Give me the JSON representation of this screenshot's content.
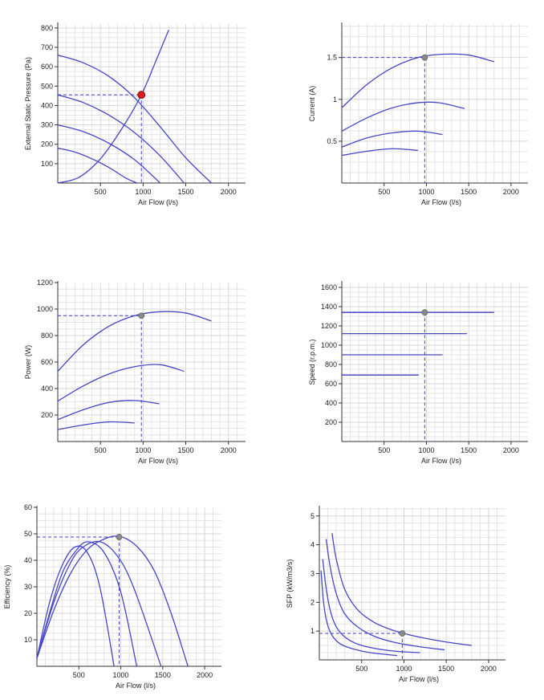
{
  "colors": {
    "curve": "#4646c8",
    "grid": "#e4e4e4",
    "axis": "#333333",
    "guide": "#3c3cd2",
    "marker_main": "#d71e1e",
    "marker": "#8a8a8a"
  },
  "chart_data": [
    {
      "id": "pressure",
      "type": "line",
      "title": "",
      "xlabel": "Air Flow (l/s)",
      "ylabel": "External Static Pressure (Pa)",
      "xlim": [
        0,
        2200
      ],
      "ylim": [
        0,
        820
      ],
      "xticks": [
        500,
        1000,
        1500,
        2000
      ],
      "yticks": [
        100,
        200,
        300,
        400,
        500,
        600,
        700,
        800
      ],
      "series": [
        {
          "x": [
            0,
            300,
            600,
            900,
            1200,
            1500,
            1800
          ],
          "y": [
            660,
            620,
            550,
            440,
            290,
            130,
            0
          ]
        },
        {
          "x": [
            0,
            300,
            600,
            900,
            1200,
            1480
          ],
          "y": [
            455,
            415,
            350,
            260,
            140,
            0
          ]
        },
        {
          "x": [
            0,
            300,
            600,
            900,
            1200
          ],
          "y": [
            300,
            265,
            205,
            120,
            0
          ]
        },
        {
          "x": [
            0,
            200,
            400,
            600,
            800,
            930
          ],
          "y": [
            180,
            160,
            125,
            80,
            25,
            0
          ]
        },
        {
          "x": [
            0,
            250,
            500,
            750,
            980,
            1150,
            1300
          ],
          "y": [
            0,
            30,
            125,
            280,
            455,
            630,
            790
          ]
        }
      ],
      "operating_point": {
        "x": 980,
        "y": 455
      }
    },
    {
      "id": "current",
      "type": "line",
      "title": "",
      "xlabel": "Air Flow (l/s)",
      "ylabel": "Current (A)",
      "xlim": [
        0,
        2200
      ],
      "ylim": [
        0,
        1.9
      ],
      "xticks": [
        500,
        1000,
        1500,
        2000
      ],
      "yticks": [
        0.5,
        1,
        1.5
      ],
      "ytick_labels": [
        "0.5",
        "1",
        "1.5"
      ],
      "series": [
        {
          "x": [
            0,
            300,
            600,
            900,
            1200,
            1500,
            1800
          ],
          "y": [
            0.9,
            1.18,
            1.38,
            1.5,
            1.54,
            1.53,
            1.45
          ]
        },
        {
          "x": [
            0,
            300,
            600,
            900,
            1150,
            1450
          ],
          "y": [
            0.62,
            0.78,
            0.9,
            0.96,
            0.96,
            0.89
          ]
        },
        {
          "x": [
            0,
            300,
            600,
            900,
            1190
          ],
          "y": [
            0.43,
            0.54,
            0.6,
            0.62,
            0.58
          ]
        },
        {
          "x": [
            0,
            300,
            600,
            900
          ],
          "y": [
            0.33,
            0.38,
            0.41,
            0.39
          ]
        }
      ],
      "operating_point": {
        "x": 980,
        "y": 1.5
      }
    },
    {
      "id": "power",
      "type": "line",
      "title": "",
      "xlabel": "Air Flow (l/s)",
      "ylabel": "Power (W)",
      "xlim": [
        0,
        2200
      ],
      "ylim": [
        0,
        1200
      ],
      "xticks": [
        500,
        1000,
        1500,
        2000
      ],
      "yticks": [
        200,
        400,
        600,
        800,
        1000,
        1200
      ],
      "series": [
        {
          "x": [
            0,
            300,
            600,
            900,
            1200,
            1500,
            1800
          ],
          "y": [
            530,
            730,
            870,
            950,
            980,
            970,
            910
          ]
        },
        {
          "x": [
            0,
            300,
            600,
            900,
            1200,
            1480
          ],
          "y": [
            305,
            420,
            510,
            565,
            580,
            530
          ]
        },
        {
          "x": [
            0,
            300,
            600,
            900,
            1190
          ],
          "y": [
            165,
            240,
            295,
            310,
            285
          ]
        },
        {
          "x": [
            0,
            300,
            600,
            900
          ],
          "y": [
            90,
            125,
            148,
            140
          ]
        }
      ],
      "operating_point": {
        "x": 980,
        "y": 950
      }
    },
    {
      "id": "speed",
      "type": "line",
      "title": "",
      "xlabel": "Air Flow (l/s)",
      "ylabel": "Speed (r.p.m.)",
      "xlim": [
        0,
        2200
      ],
      "ylim": [
        0,
        1650
      ],
      "xticks": [
        500,
        1000,
        1500,
        2000
      ],
      "yticks": [
        200,
        400,
        600,
        800,
        1000,
        1200,
        1400,
        1600
      ],
      "series": [
        {
          "x": [
            0,
            1800
          ],
          "y": [
            1340,
            1340
          ]
        },
        {
          "x": [
            0,
            1480
          ],
          "y": [
            1120,
            1120
          ]
        },
        {
          "x": [
            0,
            1190
          ],
          "y": [
            900,
            900
          ]
        },
        {
          "x": [
            0,
            910
          ],
          "y": [
            690,
            690
          ]
        }
      ],
      "operating_point": {
        "x": 980,
        "y": 1340
      }
    },
    {
      "id": "efficiency",
      "type": "line",
      "title": "",
      "xlabel": "Air Flow (l/s)",
      "ylabel": "Efficiency (%)",
      "xlim": [
        0,
        2200
      ],
      "ylim": [
        0,
        60
      ],
      "xticks": [
        500,
        1000,
        1500,
        2000
      ],
      "yticks": [
        10,
        20,
        30,
        40,
        50,
        60
      ],
      "series": [
        {
          "x": [
            0,
            200,
            400,
            600,
            800,
            990,
            1200,
            1400,
            1600,
            1800
          ],
          "y": [
            3,
            21,
            35,
            44,
            48,
            49,
            45,
            36,
            20,
            0
          ]
        },
        {
          "x": [
            0,
            200,
            400,
            550,
            750,
            950,
            1150,
            1480
          ],
          "y": [
            3,
            24,
            39,
            45,
            47,
            42,
            30,
            0
          ]
        },
        {
          "x": [
            0,
            150,
            300,
            450,
            600,
            800,
            1000,
            1190
          ],
          "y": [
            3,
            20,
            35,
            43,
            47,
            43,
            28,
            0
          ]
        },
        {
          "x": [
            0,
            150,
            300,
            450,
            600,
            750,
            920
          ],
          "y": [
            3,
            24,
            38,
            45,
            43,
            30,
            0
          ]
        }
      ],
      "operating_point": {
        "x": 980,
        "y": 48.8
      }
    },
    {
      "id": "sfp",
      "type": "line",
      "title": "",
      "xlabel": "Air Flow (l/s)",
      "ylabel": "SFP (kW/m3/s)",
      "xlim": [
        0,
        2200
      ],
      "ylim": [
        0,
        5.3
      ],
      "xticks": [
        500,
        1000,
        1500,
        2000
      ],
      "yticks": [
        1,
        2,
        3,
        4,
        5
      ],
      "series": [
        {
          "x": [
            150,
            200,
            300,
            450,
            650,
            900,
            1200,
            1500,
            1800
          ],
          "y": [
            4.4,
            3.5,
            2.45,
            1.75,
            1.3,
            1.0,
            0.78,
            0.62,
            0.5
          ]
        },
        {
          "x": [
            80,
            130,
            200,
            300,
            450,
            650,
            900,
            1200,
            1480
          ],
          "y": [
            4.2,
            3.2,
            2.3,
            1.6,
            1.15,
            0.82,
            0.6,
            0.45,
            0.35
          ]
        },
        {
          "x": [
            40,
            80,
            130,
            200,
            300,
            450,
            650,
            900,
            1190
          ],
          "y": [
            3.5,
            2.5,
            1.7,
            1.15,
            0.8,
            0.55,
            0.4,
            0.3,
            0.25
          ]
        },
        {
          "x": [
            20,
            50,
            90,
            150,
            250,
            400,
            600,
            920
          ],
          "y": [
            3.1,
            2.0,
            1.3,
            0.85,
            0.55,
            0.38,
            0.25,
            0.15
          ]
        }
      ],
      "operating_point": {
        "x": 980,
        "y": 0.92
      }
    }
  ]
}
